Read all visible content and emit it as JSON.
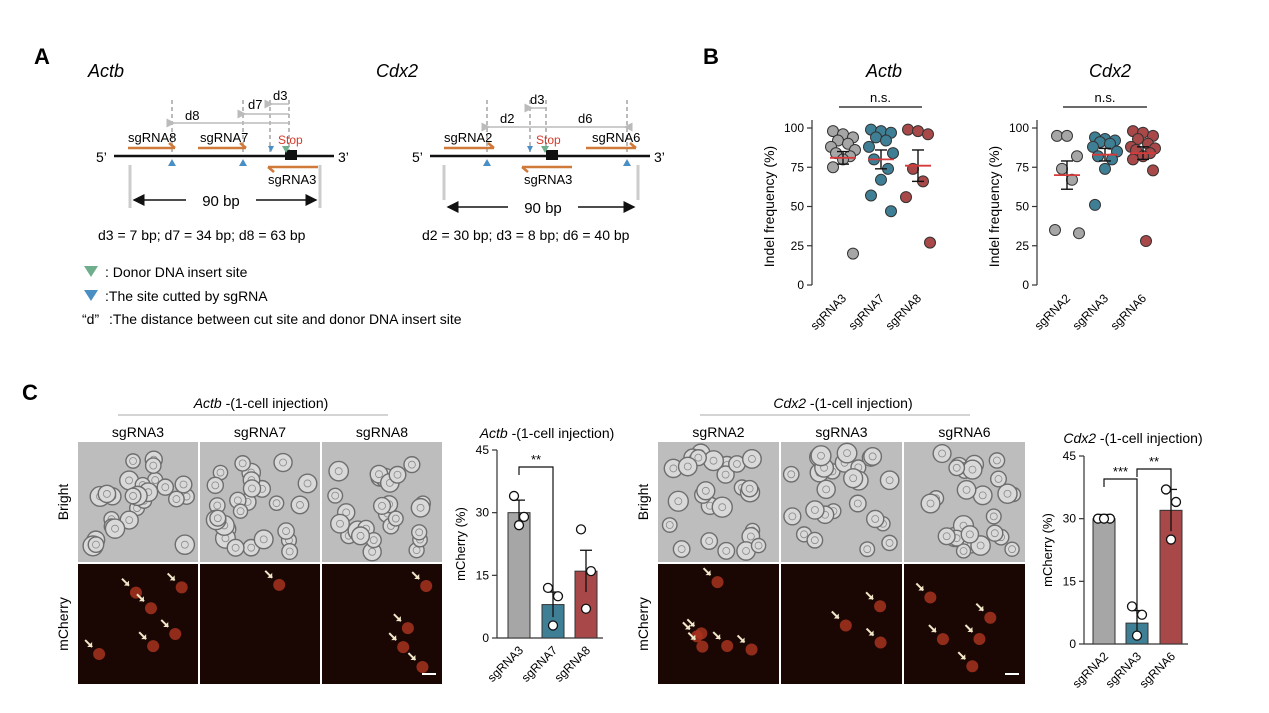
{
  "panel_letters": {
    "a": "A",
    "b": "B",
    "c": "C"
  },
  "panel_a": {
    "actb": {
      "title": "Actb",
      "guides": [
        "sgRNA8",
        "sgRNA7",
        "sgRNA3"
      ],
      "stop": "Stop",
      "five_prime": "5’",
      "three_prime": "3’",
      "distances": [
        "d8",
        "d7",
        "d3"
      ],
      "span": "90 bp",
      "summary": "d3 = 7 bp; d7 = 34 bp; d8 = 63 bp"
    },
    "cdx2": {
      "title": "Cdx2",
      "guides": [
        "sgRNA2",
        "sgRNA6",
        "sgRNA3"
      ],
      "stop": "Stop",
      "five_prime": "5’",
      "three_prime": "3’",
      "distances": [
        "d2",
        "d3",
        "d6"
      ],
      "span": "90 bp",
      "summary": "d2 = 30 bp; d3 = 8 bp; d6 = 40 bp"
    },
    "legend": [
      {
        "marker": "",
        "text": ": Donor DNA insert site",
        "color": "#6fae8c"
      },
      {
        "marker": "",
        "text": ":The  site cutted by sgRNA",
        "color": "#4a8fc4"
      },
      {
        "marker": "“d”",
        "text": ":The  distance between cut site and donor DNA insert site",
        "color": "#111111"
      }
    ],
    "colors": {
      "guide_arrow": "#cf7a3a",
      "stop": "#d63a2a",
      "guide_line": "#cccccc"
    }
  },
  "chart_data": [
    {
      "id": "B-Actb",
      "type": "scatter",
      "title": "Actb",
      "ylabel": "Indel frequency (%)",
      "ylim": [
        0,
        100
      ],
      "yticks": [
        0,
        25,
        50,
        75,
        100
      ],
      "categories": [
        "sgRNA3",
        "sgRNA7",
        "sgRNA8"
      ],
      "significance": "n.s.",
      "series": [
        {
          "color": "#a6a6a6",
          "mean": 81,
          "sem": 4,
          "points": [
            98,
            96,
            94,
            92,
            90,
            88,
            86,
            84,
            82,
            80,
            75,
            20
          ]
        },
        {
          "color": "#3f7f95",
          "mean": 80,
          "sem": 6,
          "points": [
            99,
            98,
            97,
            94,
            92,
            88,
            84,
            80,
            74,
            67,
            57,
            47
          ]
        },
        {
          "color": "#a84848",
          "mean": 76,
          "sem": 10,
          "points": [
            99,
            98,
            96,
            74,
            66,
            56,
            27
          ]
        }
      ]
    },
    {
      "id": "B-Cdx2",
      "type": "scatter",
      "title": "Cdx2",
      "ylabel": "Indel frequency (%)",
      "ylim": [
        0,
        100
      ],
      "yticks": [
        0,
        25,
        50,
        75,
        100
      ],
      "categories": [
        "sgRNA2",
        "sgRNA3",
        "sgRNA6"
      ],
      "significance": "n.s.",
      "series": [
        {
          "color": "#a6a6a6",
          "mean": 70,
          "sem": 9,
          "points": [
            95,
            95,
            82,
            74,
            67,
            35,
            33
          ]
        },
        {
          "color": "#3f7f95",
          "mean": 83,
          "sem": 4,
          "points": [
            94,
            93,
            92,
            91,
            90,
            88,
            85,
            82,
            80,
            74,
            51
          ]
        },
        {
          "color": "#a84848",
          "mean": 84,
          "sem": 4,
          "points": [
            98,
            97,
            95,
            93,
            90,
            88,
            87,
            86,
            84,
            82,
            80,
            73,
            28
          ]
        }
      ]
    },
    {
      "id": "C-Actb",
      "type": "bar",
      "title": "Actb -(1-cell injection)",
      "title_italic": "Actb",
      "title_rest": " -(1-cell injection)",
      "ylabel": "mCherry (%)",
      "ylim": [
        0,
        45
      ],
      "yticks": [
        0,
        15,
        30,
        45
      ],
      "categories": [
        "sgRNA3",
        "sgRNA7",
        "sgRNA8"
      ],
      "values": [
        30,
        8,
        16
      ],
      "sem": [
        3,
        3,
        5
      ],
      "points": [
        [
          34,
          29,
          27
        ],
        [
          12,
          10,
          3
        ],
        [
          26,
          16,
          7
        ]
      ],
      "colors": [
        "#a6a6a6",
        "#3f7f95",
        "#a84848"
      ],
      "annotations": [
        {
          "between": [
            0,
            1
          ],
          "label": "**"
        }
      ]
    },
    {
      "id": "C-Cdx2",
      "type": "bar",
      "title": "Cdx2 -(1-cell injection)",
      "title_italic": "Cdx2",
      "title_rest": " -(1-cell injection)",
      "ylabel": "mCherry (%)",
      "ylim": [
        0,
        45
      ],
      "yticks": [
        0,
        15,
        30,
        45
      ],
      "categories": [
        "sgRNA2",
        "sgRNA3",
        "sgRNA6"
      ],
      "values": [
        30,
        5,
        32
      ],
      "sem": [
        1,
        3,
        5
      ],
      "points": [
        [
          30,
          30,
          30
        ],
        [
          9,
          7,
          2
        ],
        [
          37,
          34,
          25
        ]
      ],
      "colors": [
        "#a6a6a6",
        "#3f7f95",
        "#a84848"
      ],
      "annotations": [
        {
          "between": [
            0,
            1
          ],
          "label": "***"
        },
        {
          "between": [
            1,
            2
          ],
          "label": "**"
        }
      ]
    }
  ],
  "micrographs": {
    "actb": {
      "header_italic": "Actb",
      "header_rest": " -(1-cell injection)",
      "columns": [
        "sgRNA3",
        "sgRNA7",
        "sgRNA8"
      ],
      "rows": [
        "Bright",
        "mCherry"
      ]
    },
    "cdx2": {
      "header_italic": "Cdx2",
      "header_rest": " -(1-cell injection)",
      "columns": [
        "sgRNA2",
        "sgRNA3",
        "sgRNA6"
      ],
      "rows": [
        "Bright",
        "mCherry"
      ]
    },
    "colors": {
      "bright_bg": "#bdbdbd",
      "mcherry_bg": "#1a0704",
      "mcherry_cell": "#a8321e",
      "arrow": "#f0e6c8"
    }
  }
}
